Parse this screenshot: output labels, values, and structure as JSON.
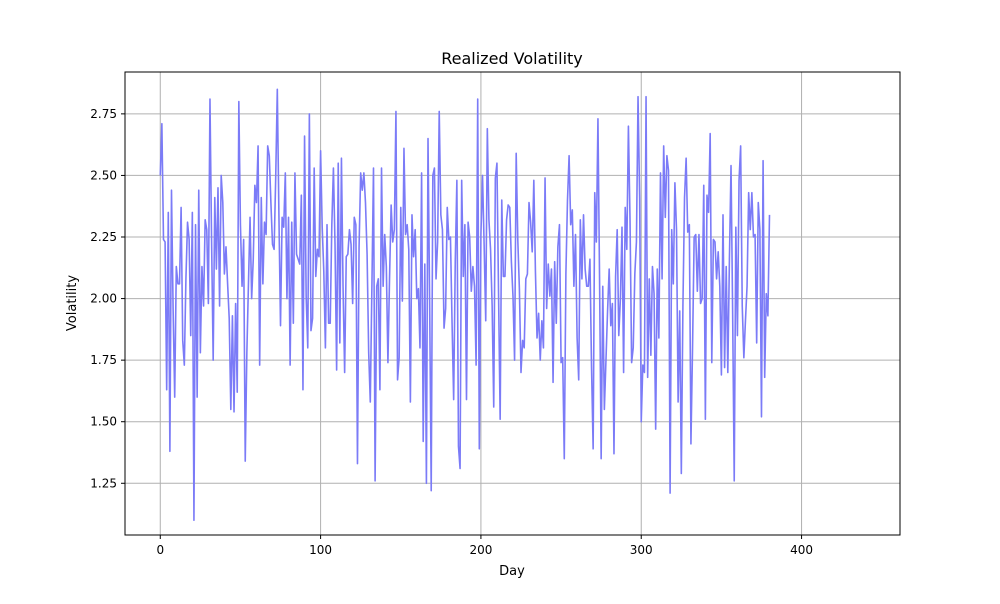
{
  "chart_data": {
    "type": "line",
    "title": "Realized Volatility",
    "xlabel": "Day",
    "ylabel": "Volatility",
    "xlim": [
      -22,
      461.4
    ],
    "ylim": [
      1.04,
      2.92
    ],
    "xticks": [
      0,
      100,
      200,
      300,
      400
    ],
    "yticks": [
      1.25,
      1.5,
      1.75,
      2.0,
      2.25,
      2.5,
      2.75
    ],
    "grid": true,
    "legend": "none",
    "series": [
      {
        "color": "#7b7bf7",
        "x_start": 0,
        "x_step": 1,
        "values": [
          2.5,
          2.71,
          2.24,
          2.23,
          1.63,
          2.35,
          1.38,
          2.44,
          1.96,
          1.6,
          2.13,
          2.06,
          2.06,
          2.37,
          1.83,
          1.73,
          2.08,
          2.31,
          2.24,
          1.85,
          2.35,
          1.1,
          2.3,
          1.6,
          2.44,
          1.78,
          2.13,
          1.97,
          2.32,
          2.28,
          1.98,
          2.81,
          2.24,
          1.75,
          2.41,
          2.12,
          2.45,
          1.97,
          2.5,
          2.39,
          2.1,
          2.21,
          2.06,
          1.92,
          1.55,
          1.93,
          1.54,
          1.98,
          1.62,
          2.8,
          2.3,
          2.05,
          2.24,
          1.34,
          1.78,
          2.06,
          2.33,
          2.0,
          2.16,
          2.46,
          2.39,
          2.62,
          1.73,
          2.41,
          2.06,
          2.31,
          2.26,
          2.62,
          2.58,
          2.39,
          2.22,
          2.2,
          2.49,
          2.85,
          2.34,
          1.89,
          2.33,
          2.29,
          2.51,
          2.0,
          2.33,
          1.73,
          2.31,
          1.9,
          2.51,
          2.18,
          2.16,
          2.14,
          2.42,
          1.63,
          2.66,
          2.01,
          1.8,
          2.75,
          1.87,
          1.92,
          2.53,
          2.09,
          2.2,
          2.17,
          2.6,
          2.29,
          2.11,
          1.8,
          2.3,
          1.9,
          1.9,
          2.3,
          2.53,
          2.22,
          1.71,
          2.55,
          1.82,
          2.57,
          2.05,
          1.7,
          2.17,
          2.18,
          2.28,
          2.22,
          1.98,
          2.33,
          2.3,
          1.33,
          2.21,
          2.51,
          2.44,
          2.51,
          2.39,
          2.18,
          1.78,
          1.58,
          2.05,
          2.53,
          1.26,
          2.05,
          2.08,
          1.63,
          2.53,
          2.05,
          2.26,
          2.13,
          1.74,
          2.08,
          2.38,
          2.23,
          2.28,
          2.76,
          1.67,
          1.76,
          2.37,
          1.99,
          2.61,
          2.26,
          2.3,
          2.2,
          1.58,
          2.34,
          2.17,
          2.28,
          2.0,
          2.04,
          1.8,
          2.51,
          1.42,
          2.14,
          1.25,
          2.65,
          2.0,
          1.22,
          2.5,
          2.53,
          2.08,
          2.23,
          2.76,
          2.34,
          2.28,
          1.88,
          1.96,
          2.37,
          2.24,
          2.25,
          1.9,
          1.59,
          2.15,
          2.48,
          1.4,
          1.31,
          2.48,
          2.09,
          2.3,
          1.59,
          2.31,
          2.25,
          2.03,
          2.13,
          2.05,
          1.73,
          2.81,
          1.39,
          2.26,
          2.5,
          2.22,
          1.91,
          2.69,
          2.32,
          2.2,
          1.97,
          1.56,
          2.49,
          2.55,
          2.02,
          1.51,
          2.4,
          2.09,
          2.09,
          2.32,
          2.38,
          2.37,
          2.15,
          2.01,
          1.75,
          2.59,
          2.24,
          2.04,
          1.7,
          1.83,
          1.8,
          2.08,
          2.1,
          2.39,
          2.31,
          2.19,
          2.48,
          2.11,
          1.84,
          1.94,
          1.75,
          1.91,
          1.8,
          2.49,
          1.96,
          2.14,
          2.01,
          2.12,
          1.66,
          2.15,
          1.9,
          2.21,
          2.3,
          1.74,
          1.76,
          1.35,
          2.1,
          2.4,
          2.58,
          2.3,
          2.36,
          2.05,
          2.26,
          1.84,
          1.67,
          2.32,
          2.08,
          2.34,
          2.12,
          2.05,
          2.05,
          2.16,
          1.72,
          1.39,
          2.43,
          2.23,
          2.73,
          2.08,
          1.35,
          2.05,
          1.55,
          1.75,
          1.95,
          2.12,
          1.89,
          1.98,
          1.37,
          2.09,
          2.28,
          1.85,
          2.0,
          2.29,
          1.7,
          2.37,
          2.2,
          2.7,
          2.32,
          1.74,
          1.8,
          2.1,
          2.23,
          2.82,
          2.41,
          1.5,
          1.73,
          1.7,
          2.82,
          1.68,
          2.08,
          1.77,
          2.13,
          2.02,
          1.47,
          2.12,
          1.84,
          2.51,
          2.08,
          2.62,
          2.33,
          2.58,
          2.52,
          1.21,
          2.28,
          2.06,
          2.47,
          2.28,
          1.58,
          1.95,
          1.29,
          1.97,
          2.41,
          2.57,
          2.27,
          2.3,
          1.41,
          1.8,
          2.25,
          2.26,
          2.03,
          2.26,
          1.98,
          2.0,
          2.46,
          1.51,
          2.42,
          2.35,
          2.67,
          1.74,
          2.24,
          2.23,
          2.08,
          2.19,
          2.05,
          1.69,
          2.34,
          1.72,
          2.13,
          1.7,
          2.16,
          2.54,
          1.95,
          1.26,
          2.29,
          1.85,
          2.48,
          2.62,
          1.97,
          1.76,
          1.91,
          2.05,
          2.43,
          2.28,
          2.43,
          2.25,
          2.26,
          1.82,
          2.39,
          2.28,
          1.52,
          2.56,
          1.68,
          2.02,
          1.93,
          2.34
        ]
      }
    ]
  }
}
